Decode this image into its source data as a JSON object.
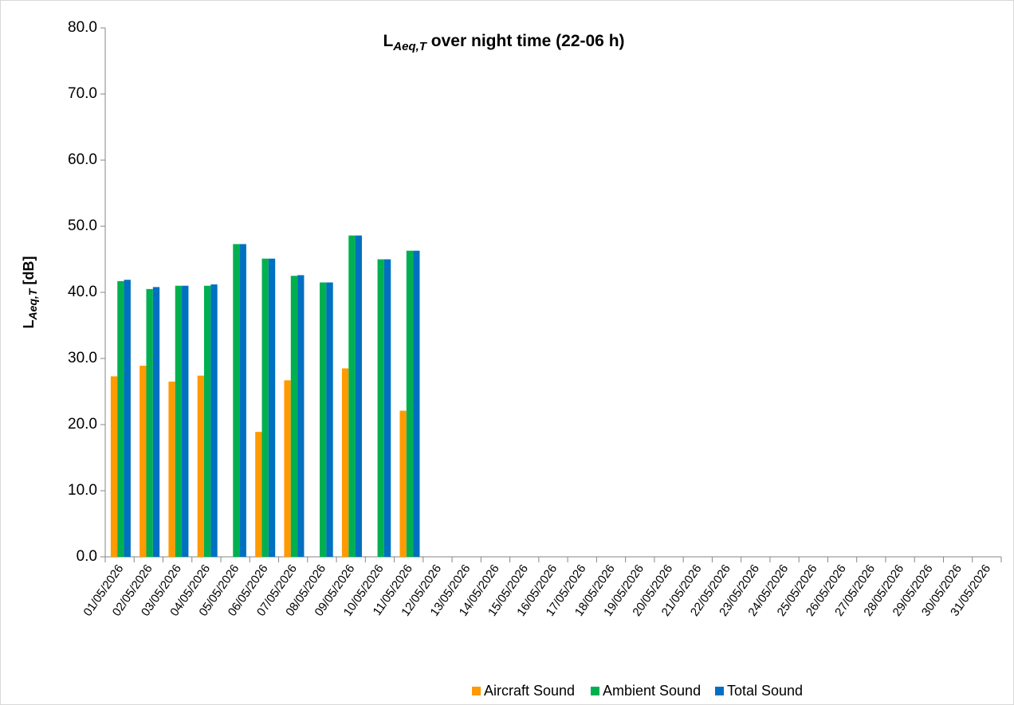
{
  "chart_data": {
    "type": "bar",
    "title": [
      "L",
      "Aeq,T",
      " over night time (22-06 h)"
    ],
    "y_label": [
      "L",
      "Aeq,T",
      " [dB]"
    ],
    "categories": [
      "01/05/2026",
      "02/05/2026",
      "03/05/2026",
      "04/05/2026",
      "05/05/2026",
      "06/05/2026",
      "07/05/2026",
      "08/05/2026",
      "09/05/2026",
      "10/05/2026",
      "11/05/2026",
      "12/05/2026",
      "13/05/2026",
      "14/05/2026",
      "15/05/2026",
      "16/05/2026",
      "17/05/2026",
      "18/05/2026",
      "19/05/2026",
      "20/05/2026",
      "21/05/2026",
      "22/05/2026",
      "23/05/2026",
      "24/05/2026",
      "25/05/2026",
      "26/05/2026",
      "27/05/2026",
      "28/05/2026",
      "29/05/2026",
      "30/05/2026",
      "31/05/2026"
    ],
    "series": [
      {
        "name": "Aircraft Sound",
        "color": "#ff9a00",
        "values": [
          27.3,
          28.9,
          26.5,
          27.4,
          null,
          18.9,
          26.7,
          null,
          28.5,
          null,
          22.1,
          null,
          null,
          null,
          null,
          null,
          null,
          null,
          null,
          null,
          null,
          null,
          null,
          null,
          null,
          null,
          null,
          null,
          null,
          null,
          null
        ]
      },
      {
        "name": "Ambient Sound",
        "color": "#00b050",
        "values": [
          41.7,
          40.5,
          41.0,
          41.0,
          47.3,
          45.1,
          42.5,
          41.5,
          48.6,
          45.0,
          46.3,
          null,
          null,
          null,
          null,
          null,
          null,
          null,
          null,
          null,
          null,
          null,
          null,
          null,
          null,
          null,
          null,
          null,
          null,
          null,
          null
        ]
      },
      {
        "name": "Total Sound",
        "color": "#0070c0",
        "values": [
          41.9,
          40.8,
          41.0,
          41.2,
          47.3,
          45.1,
          42.6,
          41.5,
          48.6,
          45.0,
          46.3,
          null,
          null,
          null,
          null,
          null,
          null,
          null,
          null,
          null,
          null,
          null,
          null,
          null,
          null,
          null,
          null,
          null,
          null,
          null,
          null
        ]
      }
    ],
    "ylim": [
      0,
      80
    ],
    "yticks": [
      {
        "value": 0,
        "label": "0.0"
      },
      {
        "value": 10,
        "label": "10.0"
      },
      {
        "value": 20,
        "label": "20.0"
      },
      {
        "value": 30,
        "label": "30.0"
      },
      {
        "value": 40,
        "label": "40.0"
      },
      {
        "value": 50,
        "label": "50.0"
      },
      {
        "value": 60,
        "label": "60.0"
      },
      {
        "value": 70,
        "label": "70.0"
      },
      {
        "value": 80,
        "label": "80.0"
      }
    ],
    "grid": false,
    "legend": "bottom"
  }
}
